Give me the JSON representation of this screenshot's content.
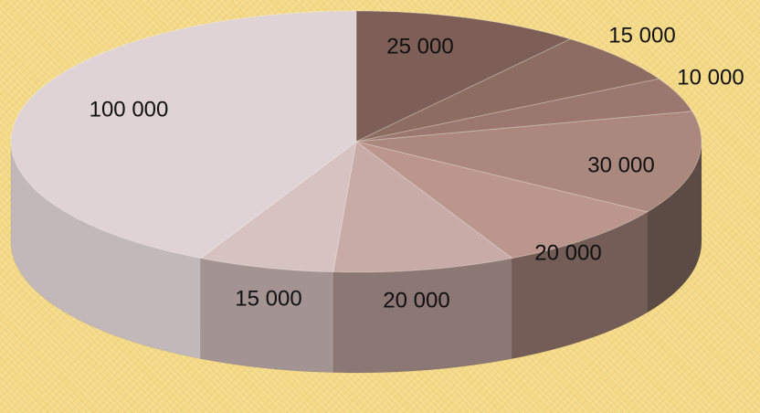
{
  "chart_data": {
    "type": "pie",
    "style": "3d",
    "values": [
      25000,
      15000,
      10000,
      30000,
      20000,
      20000,
      15000,
      100000
    ],
    "data_labels": [
      "25 000",
      "15 000",
      "10 000",
      "30 000",
      "20 000",
      "20 000",
      "15 000",
      "100 000"
    ],
    "title": "",
    "legend": "none",
    "colors": [
      "#7d5f57",
      "#8d6c62",
      "#9a7870",
      "#ab887e",
      "#bb968d",
      "#c8aba6",
      "#d6c2c0",
      "#dfd3d5"
    ]
  }
}
